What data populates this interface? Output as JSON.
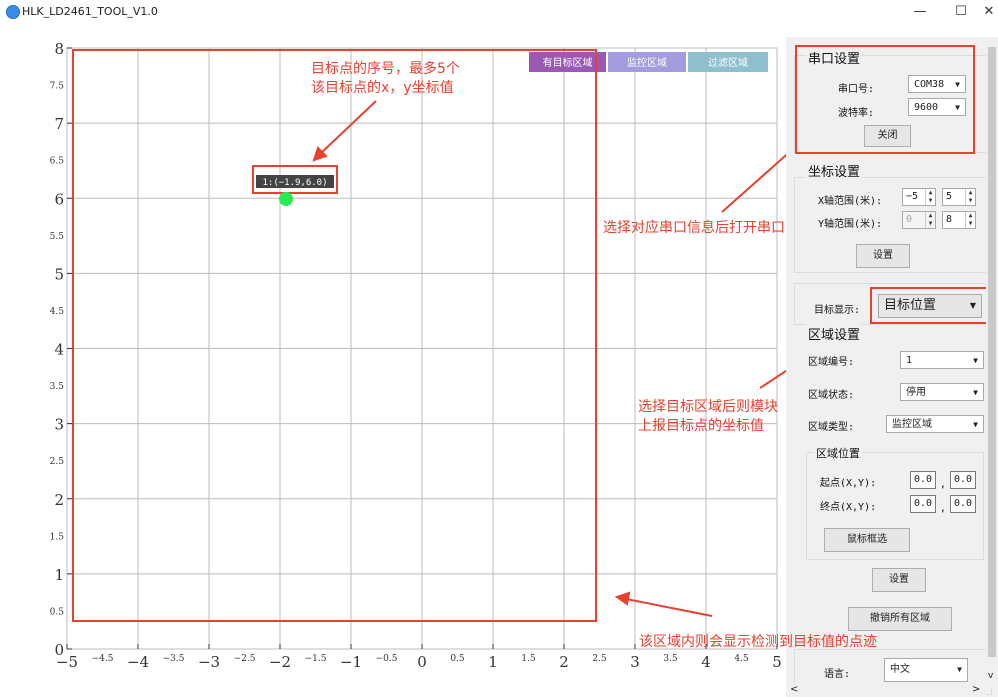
{
  "window": {
    "title": "HLK_LD2461_TOOL_V1.0",
    "minimize_glyph": "—",
    "maximize_glyph": "☐",
    "close_glyph": "✕"
  },
  "plot": {
    "y_ticks_major": [
      "0",
      "1",
      "2",
      "3",
      "4",
      "5",
      "6",
      "7",
      "8"
    ],
    "y_ticks_minor": [
      "0.5",
      "1.5",
      "2.5",
      "3.5",
      "4.5",
      "5.5",
      "6.5",
      "7.5"
    ],
    "x_ticks_major": [
      "−5",
      "−4",
      "−3",
      "−2",
      "−1",
      "0",
      "1",
      "2",
      "3",
      "4",
      "5"
    ],
    "x_ticks_minor": [
      "−4.5",
      "−3.5",
      "−2.5",
      "−1.5",
      "−0.5",
      "0.5",
      "1.5",
      "2.5",
      "3.5",
      "4.5"
    ],
    "legend": [
      {
        "label": "有目标区域",
        "color": "#9b59b6"
      },
      {
        "label": "监控区域",
        "color": "#a29bdc"
      },
      {
        "label": "过滤区域",
        "color": "#8fbfce"
      }
    ],
    "target": {
      "label": "1:(−1.9,6.0)",
      "color": "#22ee55"
    }
  },
  "panel": {
    "serial_group_title": "串口设置",
    "port_label": "串口号:",
    "port_value": "COM38",
    "baud_label": "波特率:",
    "baud_value": "9600",
    "close_button": "关闭",
    "coord_group_title": "坐标设置",
    "x_range_label": "X轴范围(米):",
    "x_min": "−5",
    "x_max": "5",
    "y_range_label": "Y轴范围(米):",
    "y_min": "0",
    "y_max": "8",
    "coord_set_button": "设置",
    "target_display_label": "目标显示:",
    "target_display_value": "目标位置",
    "region_group_title": "区域设置",
    "region_no_label": "区域编号:",
    "region_no_value": "1",
    "region_state_label": "区域状态:",
    "region_state_value": "停用",
    "region_type_label": "区域类型:",
    "region_type_value": "监控区域",
    "region_pos_title": "区域位置",
    "start_label": "起点(X,Y):",
    "start_x": "0.0",
    "start_y": "0.0",
    "end_label": "终点(X,Y):",
    "end_x": "0.0",
    "end_y": "0.0",
    "mouse_select_button": "鼠标框选",
    "region_set_button": "设置",
    "cancel_all_button": "撤销所有区域",
    "language_label": "语言:",
    "language_value": "中文",
    "dropdown_glyph": "▼",
    "spin_up": "▲",
    "spin_down": "▼",
    "comma": ","
  },
  "annotations": {
    "target_info_line1": "目标点的序号，最多5个",
    "target_info_line2": "该目标点的x，y坐标值",
    "open_port": "选择对应串口信息后打开串口",
    "region_report_line1": "选择目标区域后则模块",
    "region_report_line2": "上报目标点的坐标值",
    "region_inner": "该区域内则会显示检测到目标值的点迹"
  },
  "scroll": {
    "left": "<",
    "right": ">",
    "down": "v"
  }
}
